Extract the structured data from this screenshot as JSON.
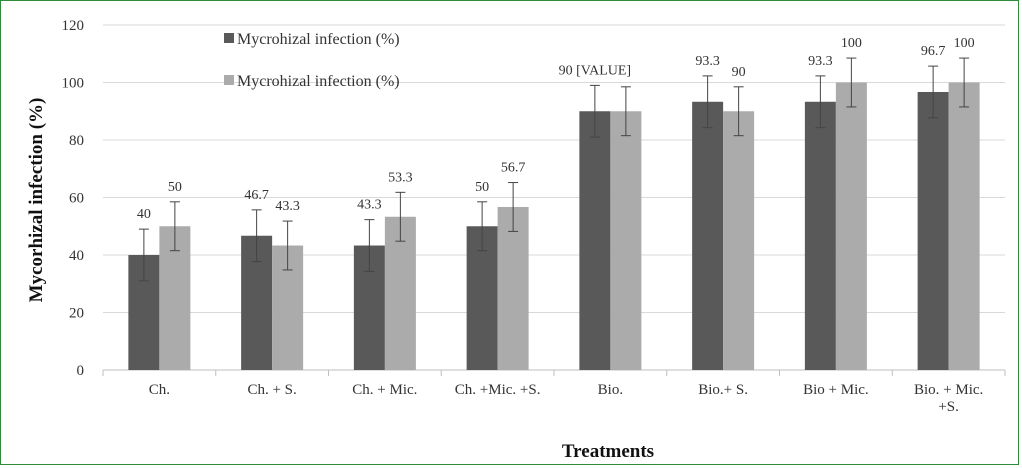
{
  "chart_data": {
    "type": "bar",
    "categories": [
      "Ch.",
      "Ch. + S.",
      "Ch. + Mic.",
      "Ch. +Mic. +S.",
      "Bio.",
      "Bio.+ S.",
      "Bio + Mic.",
      "Bio. + Mic. +S."
    ],
    "series": [
      {
        "name": "Mycrohizal infection (%)",
        "color": "#595959",
        "values": [
          40,
          46.7,
          43.3,
          50,
          90,
          93.3,
          93.3,
          96.7
        ],
        "errors": [
          9,
          9,
          9,
          8.5,
          9,
          9,
          9,
          9
        ],
        "labels": [
          "40",
          "46.7",
          "43.3",
          "50",
          "90 [VALUE]",
          "93.3",
          "93.3",
          "96.7"
        ]
      },
      {
        "name": "Mycrohizal infection (%)",
        "color": "#ababab",
        "values": [
          50,
          43.3,
          53.3,
          56.7,
          90,
          90,
          100,
          100
        ],
        "errors": [
          8.5,
          8.5,
          8.5,
          8.5,
          8.5,
          8.5,
          8.5,
          8.5
        ],
        "labels": [
          "50",
          "43.3",
          "53.3",
          "56.7",
          "",
          "90",
          "100",
          "100"
        ]
      }
    ],
    "xlabel": "Treatments",
    "ylabel": "Mycorhizal infection (%)",
    "ylim": [
      0,
      120
    ],
    "yticks": [
      0,
      20,
      40,
      60,
      80,
      100,
      120
    ],
    "grid": true,
    "legend": "top-left"
  }
}
